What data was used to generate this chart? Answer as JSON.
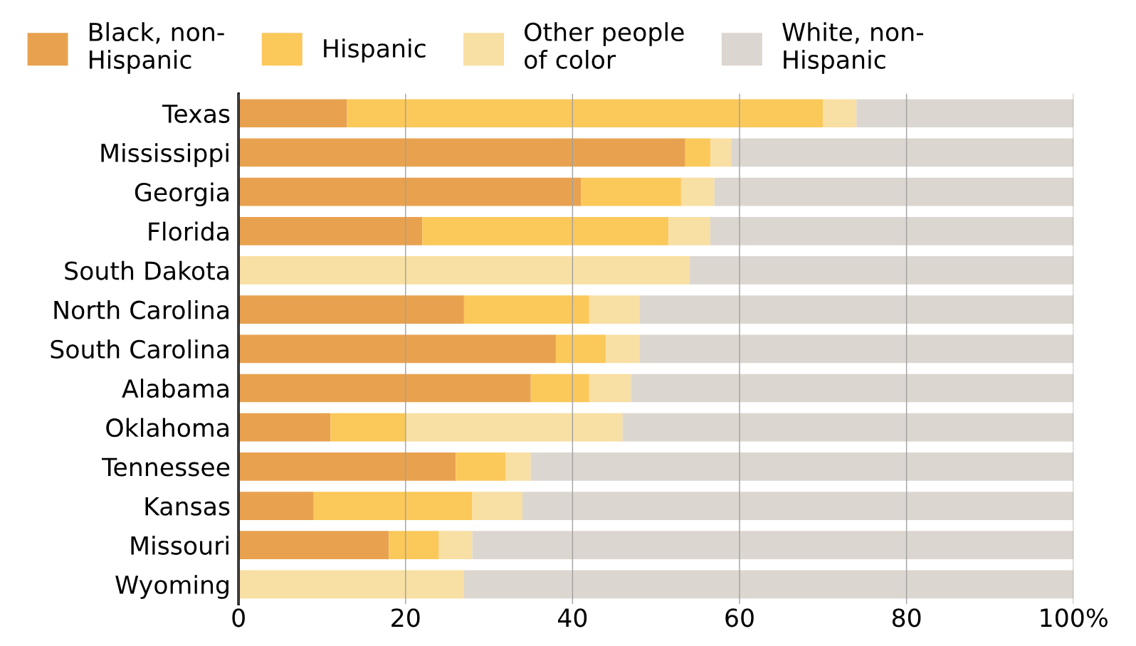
{
  "chart_data": {
    "type": "bar",
    "orientation": "horizontal",
    "stacked": true,
    "categories": [
      "Texas",
      "Mississippi",
      "Georgia",
      "Florida",
      "South Dakota",
      "North Carolina",
      "South Carolina",
      "Alabama",
      "Oklahoma",
      "Tennessee",
      "Kansas",
      "Missouri",
      "Wyoming"
    ],
    "series": [
      {
        "name": "Black, non-\nHispanic",
        "color": "#e8a24f",
        "values": [
          13,
          53.5,
          41,
          22,
          0,
          27,
          38,
          35,
          11,
          26,
          9,
          18,
          0
        ]
      },
      {
        "name": "Hispanic",
        "color": "#fbc85a",
        "values": [
          57,
          3,
          12,
          29.5,
          0,
          15,
          6,
          7,
          9,
          6,
          19,
          6,
          0
        ]
      },
      {
        "name": "Other people\nof color",
        "color": "#f8dfa3",
        "values": [
          4,
          2.5,
          4,
          5,
          54,
          6,
          4,
          5,
          26,
          3,
          6,
          4,
          27
        ]
      },
      {
        "name": "White, non-\nHispanic",
        "color": "#dcd6d0",
        "values": [
          26,
          41,
          43,
          43.5,
          46,
          52,
          52,
          53,
          54,
          65,
          66,
          72,
          73
        ]
      }
    ],
    "xlim": [
      0,
      100
    ],
    "xticks": [
      0,
      20,
      40,
      60,
      80,
      {
        "value": 100,
        "label": "100%"
      }
    ],
    "grid": "x",
    "legend": "top"
  }
}
